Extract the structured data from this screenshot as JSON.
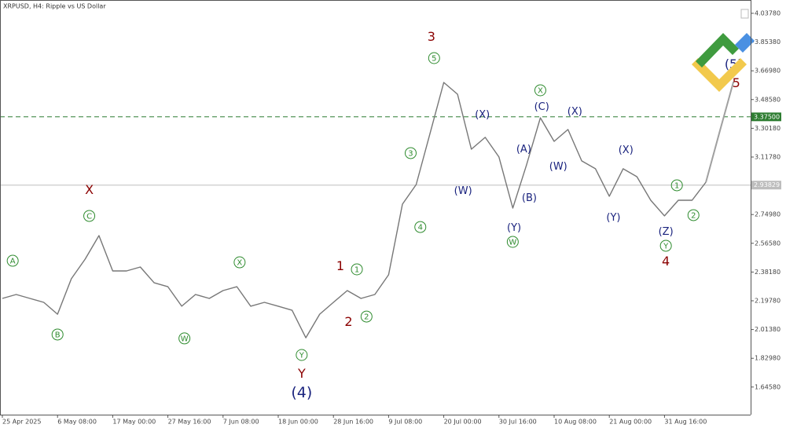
{
  "chart_data": {
    "type": "line",
    "title": "XRPUSD, H4:  Ripple vs US Dollar",
    "categories": [
      "25 Apr 2025",
      null,
      null,
      null,
      "6 May 08:00",
      null,
      null,
      null,
      "17 May 00:00",
      null,
      null,
      null,
      "27 May 16:00",
      null,
      null,
      null,
      "7 Jun 08:00",
      null,
      null,
      null,
      "18 Jun 00:00",
      null,
      null,
      null,
      "28 Jun 16:00",
      null,
      null,
      null,
      "9 Jul 08:00",
      null,
      null,
      null,
      "20 Jul 00:00",
      null,
      null,
      null,
      "30 Jul 16:00",
      null,
      null,
      null,
      "10 Aug 08:00",
      null,
      null,
      null,
      "21 Aug 00:00",
      null,
      null,
      null,
      "31 Aug 16:00",
      null,
      null,
      null,
      null,
      null
    ],
    "series": [
      {
        "color": "#777777",
        "values": [
          2.213,
          2.238,
          2.213,
          2.188,
          2.112,
          2.339,
          2.464,
          2.615,
          2.389,
          2.389,
          2.414,
          2.313,
          2.288,
          2.163,
          2.238,
          2.213,
          2.263,
          2.288,
          2.163,
          2.188,
          2.163,
          2.137,
          1.961,
          2.112,
          2.188,
          2.263,
          2.213,
          2.238,
          2.364,
          2.816,
          2.942,
          3.269,
          3.595,
          3.52,
          3.168,
          3.244,
          3.118,
          2.791,
          3.068,
          3.369,
          3.218,
          3.294,
          3.093,
          3.043,
          2.867,
          3.043,
          2.992,
          2.841,
          2.741,
          2.841,
          2.841,
          2.957,
          null,
          null
        ]
      },
      {
        "color": "#a0a0a0",
        "values": [
          null,
          null,
          null,
          null,
          null,
          null,
          null,
          null,
          null,
          null,
          null,
          null,
          null,
          null,
          null,
          null,
          null,
          null,
          null,
          null,
          null,
          null,
          null,
          null,
          null,
          null,
          null,
          null,
          null,
          null,
          null,
          null,
          null,
          null,
          null,
          null,
          null,
          null,
          null,
          null,
          null,
          null,
          null,
          null,
          null,
          null,
          null,
          null,
          null,
          null,
          null,
          2.957,
          3.28,
          3.6
        ]
      }
    ],
    "ylim": [
      1.469,
      4.123
    ],
    "yticks": [
      {
        "value": 1.6458,
        "label": "1.64580"
      },
      {
        "value": 1.8298,
        "label": "1.82980"
      },
      {
        "value": 2.0138,
        "label": "2.01380"
      },
      {
        "value": 2.1978,
        "label": "2.19780"
      },
      {
        "value": 2.3818,
        "label": "2.38180"
      },
      {
        "value": 2.5658,
        "label": "2.56580"
      },
      {
        "value": 2.7498,
        "label": "2.74980"
      },
      {
        "value": 3.1178,
        "label": "3.11780"
      },
      {
        "value": 3.3018,
        "label": "3.30180"
      },
      {
        "value": 3.4858,
        "label": "3.48580"
      },
      {
        "value": 3.6698,
        "label": "3.66980"
      },
      {
        "value": 3.8538,
        "label": "3.85380"
      },
      {
        "value": 4.0378,
        "label": "4.03780"
      }
    ],
    "levels": [
      {
        "value": 3.375,
        "label": "3.37500",
        "color": "#2e7d32",
        "dashed": true
      },
      {
        "value": 2.93829,
        "label": "2.93829",
        "color": "#bdbdbd",
        "dashed": false
      }
    ],
    "annotations": [
      {
        "text": "A",
        "index": 0.75,
        "y": 2.454,
        "style": "circled"
      },
      {
        "text": "B",
        "index": 4,
        "y": 1.982,
        "style": "circled"
      },
      {
        "text": "C",
        "index": 6.3,
        "y": 2.741,
        "style": "circled"
      },
      {
        "text": "X",
        "index": 6.3,
        "y": 2.907,
        "style": "primary"
      },
      {
        "text": "W",
        "index": 13.2,
        "y": 1.957,
        "style": "circled"
      },
      {
        "text": "X",
        "index": 17.2,
        "y": 2.444,
        "style": "circled"
      },
      {
        "text": "Y",
        "index": 21.7,
        "y": 1.851,
        "style": "circled"
      },
      {
        "text": "Y",
        "index": 21.7,
        "y": 1.73,
        "style": "primary"
      },
      {
        "text": "(4)",
        "index": 21.7,
        "y": 1.61,
        "style": "cycle"
      },
      {
        "text": "1",
        "index": 24.5,
        "y": 2.419,
        "style": "primary"
      },
      {
        "text": "1",
        "index": 25.7,
        "y": 2.399,
        "style": "circled"
      },
      {
        "text": "2",
        "index": 25.1,
        "y": 2.062,
        "style": "primary"
      },
      {
        "text": "2",
        "index": 26.4,
        "y": 2.097,
        "style": "circled"
      },
      {
        "text": "3",
        "index": 29.6,
        "y": 3.143,
        "style": "circled"
      },
      {
        "text": "4",
        "index": 30.3,
        "y": 2.67,
        "style": "circled"
      },
      {
        "text": "5",
        "index": 31.3,
        "y": 3.751,
        "style": "circled"
      },
      {
        "text": "3",
        "index": 31.1,
        "y": 3.887,
        "style": "primary"
      },
      {
        "text": "(W)",
        "index": 33.4,
        "y": 2.902,
        "style": "intermediate"
      },
      {
        "text": "(X)",
        "index": 34.8,
        "y": 3.389,
        "style": "intermediate"
      },
      {
        "text": "(A)",
        "index": 37.8,
        "y": 3.168,
        "style": "intermediate"
      },
      {
        "text": "(B)",
        "index": 38.2,
        "y": 2.856,
        "style": "intermediate"
      },
      {
        "text": "(Y)",
        "index": 37.1,
        "y": 2.665,
        "style": "intermediate"
      },
      {
        "text": "W",
        "index": 37.0,
        "y": 2.575,
        "style": "circled"
      },
      {
        "text": "X",
        "index": 39.0,
        "y": 3.545,
        "style": "circled"
      },
      {
        "text": "(C)",
        "index": 39.1,
        "y": 3.44,
        "style": "intermediate"
      },
      {
        "text": "(X)",
        "index": 41.5,
        "y": 3.409,
        "style": "intermediate"
      },
      {
        "text": "(W)",
        "index": 40.3,
        "y": 3.058,
        "style": "intermediate"
      },
      {
        "text": "(X)",
        "index": 45.2,
        "y": 3.163,
        "style": "intermediate"
      },
      {
        "text": "(Y)",
        "index": 44.3,
        "y": 2.731,
        "style": "intermediate"
      },
      {
        "text": "(Z)",
        "index": 48.1,
        "y": 2.64,
        "style": "intermediate"
      },
      {
        "text": "Y",
        "index": 48.1,
        "y": 2.55,
        "style": "circled"
      },
      {
        "text": "4",
        "index": 48.1,
        "y": 2.449,
        "style": "primary"
      },
      {
        "text": "1",
        "index": 48.9,
        "y": 2.937,
        "style": "circled"
      },
      {
        "text": "2",
        "index": 50.1,
        "y": 2.746,
        "style": "circled"
      },
      {
        "text": "5",
        "index": 53.2,
        "y": 3.591,
        "style": "primary"
      },
      {
        "text": "(5)",
        "index": 53.0,
        "y": 3.711,
        "style": "cycle-small"
      }
    ]
  }
}
